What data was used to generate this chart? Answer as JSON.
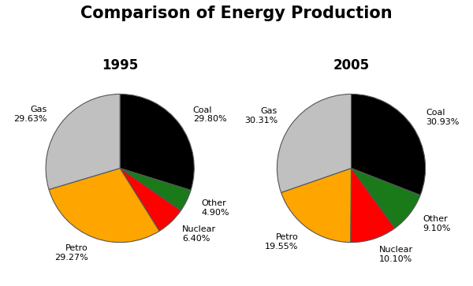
{
  "title": "Comparison of Energy Production",
  "title_fontsize": 15,
  "title_fontweight": "bold",
  "year1": "1995",
  "year2": "2005",
  "year_fontsize": 12,
  "year_color": "#000000",
  "values_1995": [
    29.8,
    4.9,
    6.4,
    29.27,
    29.63
  ],
  "values_2005": [
    30.93,
    9.1,
    10.1,
    19.55,
    30.31
  ],
  "labels_1995": [
    "Coal\n29.80%",
    "Other\n4.90%",
    "Nuclear\n6.40%",
    "Petro\n29.27%",
    "Gas\n29.63%"
  ],
  "labels_2005": [
    "Coal\n30.93%",
    "Other\n9.10%",
    "Nuclear\n10.10%",
    "Petro\n19.55%",
    "Gas\n30.31%"
  ],
  "colors": [
    "#000000",
    "#1a7a1a",
    "#ff0000",
    "#ffa500",
    "#c0c0c0"
  ],
  "startangle": 90,
  "label_fontsize": 8,
  "background_color": "#ffffff"
}
